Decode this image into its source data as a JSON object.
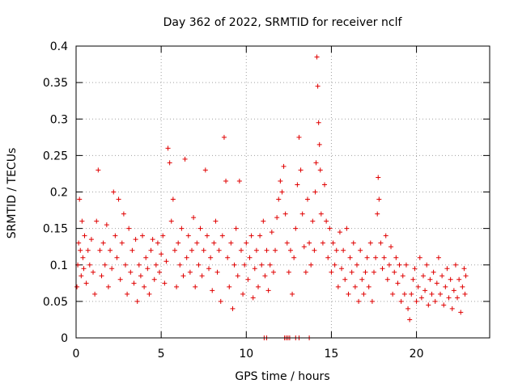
{
  "chart_data": {
    "type": "scatter",
    "title": "Day 362 of 2022, SRMTID for receiver nclf",
    "xlabel": "GPS time / hours",
    "ylabel": "SRMTID / TECUs",
    "xlim": [
      0,
      24.3
    ],
    "ylim": [
      0,
      0.4
    ],
    "x_ticks": [
      0,
      5,
      10,
      15,
      20
    ],
    "x_tick_labels": [
      "0",
      "5",
      "10",
      "15",
      "20"
    ],
    "y_ticks": [
      0,
      0.05,
      0.1,
      0.15,
      0.2,
      0.25,
      0.3,
      0.35,
      0.4
    ],
    "y_tick_labels": [
      "0",
      "0.05",
      "0.1",
      "0.15",
      "0.2",
      "0.25",
      "0.3",
      "0.35",
      "0.4"
    ],
    "grid": true,
    "marker": "+",
    "marker_color": "#e00000",
    "series": [
      {
        "name": "SRMTID",
        "points": [
          [
            0.05,
            0.07
          ],
          [
            0.1,
            0.1
          ],
          [
            0.15,
            0.13
          ],
          [
            0.2,
            0.19
          ],
          [
            0.25,
            0.12
          ],
          [
            0.3,
            0.085
          ],
          [
            0.35,
            0.16
          ],
          [
            0.4,
            0.11
          ],
          [
            0.45,
            0.095
          ],
          [
            0.5,
            0.14
          ],
          [
            0.6,
            0.075
          ],
          [
            0.7,
            0.12
          ],
          [
            0.8,
            0.1
          ],
          [
            0.9,
            0.135
          ],
          [
            1.0,
            0.09
          ],
          [
            1.1,
            0.06
          ],
          [
            1.2,
            0.16
          ],
          [
            1.3,
            0.23
          ],
          [
            1.4,
            0.12
          ],
          [
            1.5,
            0.085
          ],
          [
            1.6,
            0.13
          ],
          [
            1.7,
            0.1
          ],
          [
            1.8,
            0.155
          ],
          [
            1.9,
            0.07
          ],
          [
            2.0,
            0.12
          ],
          [
            2.1,
            0.095
          ],
          [
            2.2,
            0.2
          ],
          [
            2.3,
            0.14
          ],
          [
            2.4,
            0.11
          ],
          [
            2.5,
            0.19
          ],
          [
            2.6,
            0.08
          ],
          [
            2.7,
            0.13
          ],
          [
            2.8,
            0.17
          ],
          [
            2.9,
            0.1
          ],
          [
            3.0,
            0.06
          ],
          [
            3.1,
            0.15
          ],
          [
            3.2,
            0.09
          ],
          [
            3.3,
            0.12
          ],
          [
            3.4,
            0.075
          ],
          [
            3.5,
            0.135
          ],
          [
            3.6,
            0.05
          ],
          [
            3.7,
            0.1
          ],
          [
            3.8,
            0.085
          ],
          [
            3.9,
            0.14
          ],
          [
            4.0,
            0.07
          ],
          [
            4.1,
            0.11
          ],
          [
            4.2,
            0.095
          ],
          [
            4.3,
            0.06
          ],
          [
            4.4,
            0.12
          ],
          [
            4.5,
            0.135
          ],
          [
            4.6,
            0.08
          ],
          [
            4.7,
            0.1
          ],
          [
            4.8,
            0.13
          ],
          [
            4.9,
            0.09
          ],
          [
            5.0,
            0.115
          ],
          [
            5.1,
            0.14
          ],
          [
            5.2,
            0.075
          ],
          [
            5.3,
            0.105
          ],
          [
            5.4,
            0.26
          ],
          [
            5.5,
            0.24
          ],
          [
            5.6,
            0.16
          ],
          [
            5.7,
            0.19
          ],
          [
            5.8,
            0.12
          ],
          [
            5.9,
            0.07
          ],
          [
            6.0,
            0.13
          ],
          [
            6.1,
            0.1
          ],
          [
            6.2,
            0.15
          ],
          [
            6.3,
            0.085
          ],
          [
            6.4,
            0.245
          ],
          [
            6.5,
            0.11
          ],
          [
            6.6,
            0.14
          ],
          [
            6.7,
            0.09
          ],
          [
            6.8,
            0.12
          ],
          [
            6.9,
            0.165
          ],
          [
            7.0,
            0.07
          ],
          [
            7.1,
            0.13
          ],
          [
            7.2,
            0.1
          ],
          [
            7.3,
            0.15
          ],
          [
            7.4,
            0.085
          ],
          [
            7.5,
            0.12
          ],
          [
            7.6,
            0.23
          ],
          [
            7.7,
            0.14
          ],
          [
            7.8,
            0.095
          ],
          [
            7.9,
            0.11
          ],
          [
            8.0,
            0.065
          ],
          [
            8.1,
            0.13
          ],
          [
            8.2,
            0.16
          ],
          [
            8.3,
            0.09
          ],
          [
            8.4,
            0.12
          ],
          [
            8.5,
            0.05
          ],
          [
            8.6,
            0.14
          ],
          [
            8.7,
            0.275
          ],
          [
            8.8,
            0.215
          ],
          [
            8.9,
            0.11
          ],
          [
            9.0,
            0.07
          ],
          [
            9.1,
            0.13
          ],
          [
            9.2,
            0.04
          ],
          [
            9.3,
            0.1
          ],
          [
            9.4,
            0.15
          ],
          [
            9.5,
            0.085
          ],
          [
            9.6,
            0.215
          ],
          [
            9.7,
            0.12
          ],
          [
            9.8,
            0.06
          ],
          [
            9.9,
            0.1
          ],
          [
            10.0,
            0.13
          ],
          [
            10.1,
            0.08
          ],
          [
            10.2,
            0.11
          ],
          [
            10.3,
            0.14
          ],
          [
            10.4,
            0.055
          ],
          [
            10.5,
            0.095
          ],
          [
            10.6,
            0.12
          ],
          [
            10.7,
            0.07
          ],
          [
            10.8,
            0.14
          ],
          [
            10.9,
            0.1
          ],
          [
            11.0,
            0.16
          ],
          [
            11.1,
            0.085
          ],
          [
            11.2,
            0.12
          ],
          [
            11.3,
            0.065
          ],
          [
            11.4,
            0.1
          ],
          [
            11.5,
            0.145
          ],
          [
            11.6,
            0.09
          ],
          [
            11.7,
            0.12
          ],
          [
            11.8,
            0.165
          ],
          [
            11.9,
            0.19
          ],
          [
            12.0,
            0.215
          ],
          [
            12.1,
            0.2
          ],
          [
            12.2,
            0.235
          ],
          [
            12.3,
            0.17
          ],
          [
            12.4,
            0.13
          ],
          [
            12.5,
            0.09
          ],
          [
            12.6,
            0.12
          ],
          [
            12.7,
            0.06
          ],
          [
            12.8,
            0.11
          ],
          [
            12.9,
            0.15
          ],
          [
            13.0,
            0.21
          ],
          [
            13.1,
            0.275
          ],
          [
            13.2,
            0.23
          ],
          [
            13.3,
            0.17
          ],
          [
            13.4,
            0.125
          ],
          [
            13.5,
            0.09
          ],
          [
            13.6,
            0.19
          ],
          [
            13.7,
            0.13
          ],
          [
            13.8,
            0.1
          ],
          [
            13.9,
            0.16
          ],
          [
            14.0,
            0.12
          ],
          [
            14.05,
            0.2
          ],
          [
            14.1,
            0.24
          ],
          [
            14.15,
            0.385
          ],
          [
            14.2,
            0.345
          ],
          [
            14.25,
            0.295
          ],
          [
            14.3,
            0.265
          ],
          [
            14.35,
            0.23
          ],
          [
            14.4,
            0.17
          ],
          [
            14.5,
            0.13
          ],
          [
            14.6,
            0.21
          ],
          [
            14.7,
            0.16
          ],
          [
            14.8,
            0.11
          ],
          [
            14.9,
            0.15
          ],
          [
            15.0,
            0.09
          ],
          [
            15.1,
            0.13
          ],
          [
            15.2,
            0.1
          ],
          [
            15.3,
            0.12
          ],
          [
            15.4,
            0.07
          ],
          [
            15.5,
            0.145
          ],
          [
            15.6,
            0.095
          ],
          [
            15.7,
            0.12
          ],
          [
            15.8,
            0.08
          ],
          [
            15.9,
            0.15
          ],
          [
            16.0,
            0.06
          ],
          [
            16.1,
            0.11
          ],
          [
            16.2,
            0.09
          ],
          [
            16.3,
            0.13
          ],
          [
            16.4,
            0.07
          ],
          [
            16.5,
            0.1
          ],
          [
            16.6,
            0.05
          ],
          [
            16.7,
            0.12
          ],
          [
            16.8,
            0.08
          ],
          [
            16.9,
            0.06
          ],
          [
            17.0,
            0.09
          ],
          [
            17.1,
            0.11
          ],
          [
            17.2,
            0.07
          ],
          [
            17.3,
            0.13
          ],
          [
            17.4,
            0.05
          ],
          [
            17.5,
            0.09
          ],
          [
            17.6,
            0.11
          ],
          [
            17.7,
            0.17
          ],
          [
            17.75,
            0.22
          ],
          [
            17.8,
            0.19
          ],
          [
            17.9,
            0.13
          ],
          [
            18.0,
            0.095
          ],
          [
            18.1,
            0.11
          ],
          [
            18.2,
            0.14
          ],
          [
            18.3,
            0.08
          ],
          [
            18.4,
            0.1
          ],
          [
            18.5,
            0.125
          ],
          [
            18.6,
            0.06
          ],
          [
            18.7,
            0.09
          ],
          [
            18.8,
            0.11
          ],
          [
            18.9,
            0.075
          ],
          [
            19.0,
            0.1
          ],
          [
            19.1,
            0.05
          ],
          [
            19.2,
            0.085
          ],
          [
            19.3,
            0.06
          ],
          [
            19.4,
            0.1
          ],
          [
            19.5,
            0.04
          ],
          [
            19.6,
            0.025
          ],
          [
            19.7,
            0.06
          ],
          [
            19.8,
            0.08
          ],
          [
            19.9,
            0.095
          ],
          [
            20.0,
            0.05
          ],
          [
            20.1,
            0.07
          ],
          [
            20.2,
            0.11
          ],
          [
            20.3,
            0.055
          ],
          [
            20.4,
            0.085
          ],
          [
            20.5,
            0.065
          ],
          [
            20.6,
            0.1
          ],
          [
            20.7,
            0.045
          ],
          [
            20.8,
            0.08
          ],
          [
            20.9,
            0.06
          ],
          [
            21.0,
            0.09
          ],
          [
            21.1,
            0.05
          ],
          [
            21.2,
            0.075
          ],
          [
            21.3,
            0.11
          ],
          [
            21.4,
            0.06
          ],
          [
            21.5,
            0.085
          ],
          [
            21.6,
            0.045
          ],
          [
            21.7,
            0.07
          ],
          [
            21.8,
            0.095
          ],
          [
            21.9,
            0.055
          ],
          [
            22.0,
            0.08
          ],
          [
            22.1,
            0.04
          ],
          [
            22.2,
            0.065
          ],
          [
            22.3,
            0.1
          ],
          [
            22.4,
            0.055
          ],
          [
            22.5,
            0.08
          ],
          [
            22.6,
            0.035
          ],
          [
            22.7,
            0.07
          ],
          [
            22.8,
            0.095
          ],
          [
            22.85,
            0.06
          ],
          [
            22.9,
            0.085
          ],
          [
            11.05,
            0.0
          ],
          [
            11.2,
            0.0
          ],
          [
            12.25,
            0.0
          ],
          [
            12.35,
            0.0
          ],
          [
            12.45,
            0.0
          ],
          [
            12.55,
            0.0
          ],
          [
            12.9,
            0.0
          ],
          [
            13.1,
            0.0
          ],
          [
            13.7,
            0.0
          ]
        ]
      }
    ]
  }
}
